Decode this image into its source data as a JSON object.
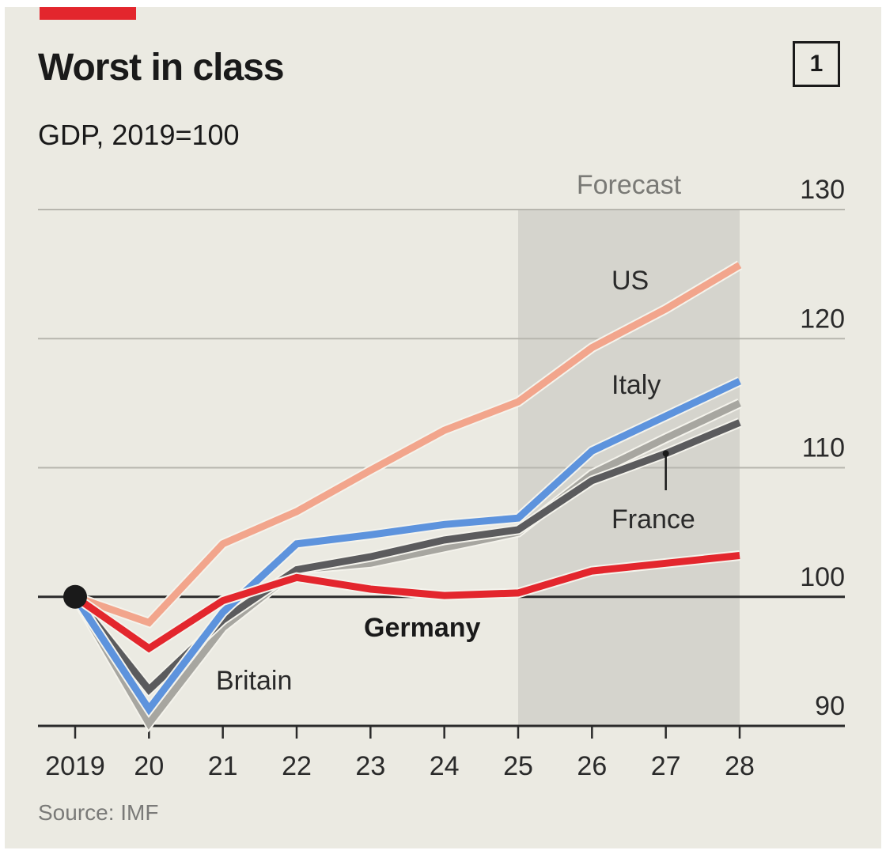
{
  "header": {
    "title": "Worst in class",
    "subtitle": "GDP, 2019=100",
    "chart_number": "1",
    "accent_color": "#e3262d"
  },
  "footer": {
    "source": "Source: IMF"
  },
  "chart_data": {
    "type": "line",
    "title": "Worst in class",
    "subtitle": "GDP, 2019=100",
    "xlabel": "",
    "ylabel": "",
    "x": [
      2019,
      2020,
      2021,
      2022,
      2023,
      2024,
      2025,
      2026,
      2027,
      2028
    ],
    "x_tick_labels": [
      "2019",
      "20",
      "21",
      "22",
      "23",
      "24",
      "25",
      "26",
      "27",
      "28"
    ],
    "ylim": [
      90,
      130
    ],
    "y_ticks": [
      90,
      100,
      110,
      120,
      130
    ],
    "y_tick_labels": [
      "90",
      "100",
      "110",
      "120",
      "130"
    ],
    "y_axis_side": "right",
    "grid": true,
    "baseline": 100,
    "forecast_region": {
      "label": "Forecast",
      "x_start": 2025,
      "x_end": 2028
    },
    "start_marker": {
      "x": 2019,
      "y": 100
    },
    "series": [
      {
        "name": "Britain",
        "label": "Britain",
        "color": "#a7a6a0",
        "values": [
          100,
          90.2,
          97.6,
          102.1,
          102.6,
          103.8,
          105.0,
          109.5,
          112.3,
          115.0
        ]
      },
      {
        "name": "France",
        "label": "France",
        "color": "#5b5b5d",
        "values": [
          100,
          92.8,
          98.2,
          102.1,
          103.1,
          104.4,
          105.2,
          109.0,
          111.1,
          113.5
        ]
      },
      {
        "name": "Italy",
        "label": "Italy",
        "color": "#5d93dd",
        "values": [
          100,
          91.3,
          98.8,
          104.1,
          104.8,
          105.6,
          106.1,
          111.3,
          114.0,
          116.7
        ]
      },
      {
        "name": "US",
        "label": "US",
        "color": "#f2a58c",
        "values": [
          100,
          98.0,
          104.1,
          106.6,
          109.8,
          112.9,
          115.1,
          119.3,
          122.3,
          125.7
        ]
      },
      {
        "name": "Germany",
        "label": "Germany",
        "color": "#e3262d",
        "values": [
          100,
          96.0,
          99.7,
          101.5,
          100.6,
          100.1,
          100.3,
          102.0,
          102.6,
          103.2
        ]
      }
    ],
    "annotations": [
      {
        "text": "Forecast",
        "series": null
      },
      {
        "text": "US",
        "series": "US"
      },
      {
        "text": "Italy",
        "series": "Italy"
      },
      {
        "text": "France",
        "series": "France",
        "pointer_x": 2027
      },
      {
        "text": "Germany",
        "series": "Germany",
        "bold": true
      },
      {
        "text": "Britain",
        "series": "Britain"
      }
    ]
  }
}
